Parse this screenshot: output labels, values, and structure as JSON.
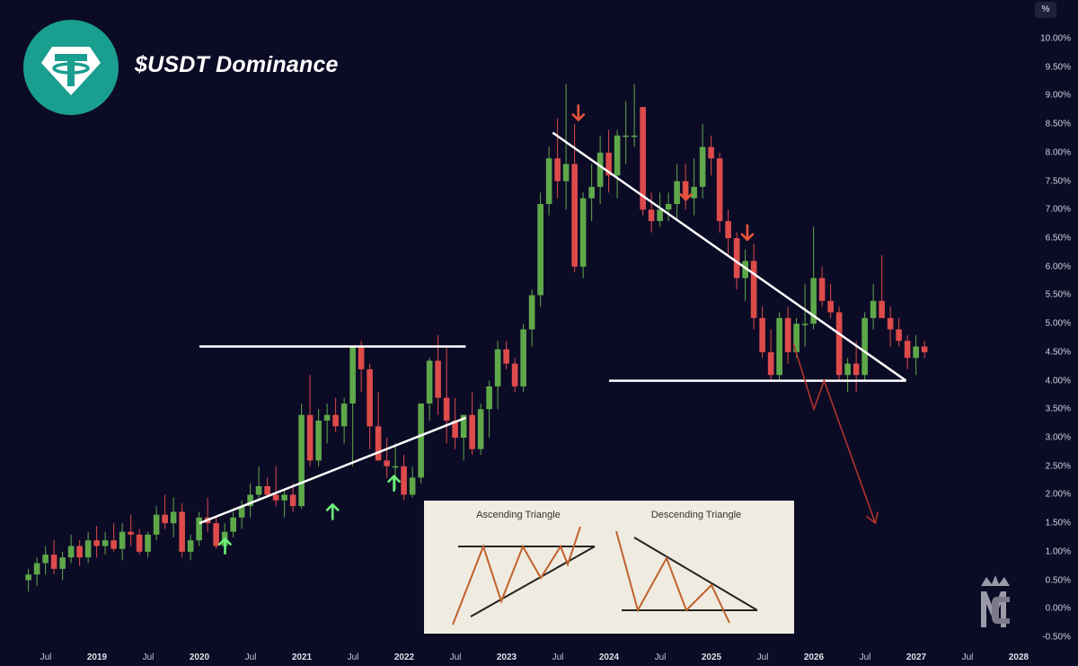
{
  "header": {
    "title": "$USDT Dominance",
    "unit": "%"
  },
  "colors": {
    "background": "#0c0b26",
    "up": "#5ea84a",
    "down": "#dd4b4b",
    "trendline": "#ffffff",
    "arrow_up": "#6ef07a",
    "arrow_down": "#e8553a",
    "projection": "#b0342c",
    "logo": "#1a9e8f"
  },
  "chart_data": {
    "type": "candlestick",
    "ylim": [
      -0.5,
      10.0
    ],
    "yticks": [
      "10.00%",
      "9.50%",
      "9.00%",
      "8.50%",
      "8.00%",
      "7.50%",
      "7.00%",
      "6.50%",
      "6.00%",
      "5.50%",
      "5.00%",
      "4.50%",
      "4.00%",
      "3.50%",
      "3.00%",
      "2.50%",
      "2.00%",
      "1.50%",
      "1.00%",
      "0.50%",
      "0.00%",
      "-0.50%"
    ],
    "xticks": [
      {
        "label": "Jul",
        "year": false,
        "t": 2018.5
      },
      {
        "label": "2019",
        "year": true,
        "t": 2019.0
      },
      {
        "label": "Jul",
        "year": false,
        "t": 2019.5
      },
      {
        "label": "2020",
        "year": true,
        "t": 2020.0
      },
      {
        "label": "Jul",
        "year": false,
        "t": 2020.5
      },
      {
        "label": "2021",
        "year": true,
        "t": 2021.0
      },
      {
        "label": "Jul",
        "year": false,
        "t": 2021.5
      },
      {
        "label": "2022",
        "year": true,
        "t": 2022.0
      },
      {
        "label": "Jul",
        "year": false,
        "t": 2022.5
      },
      {
        "label": "2023",
        "year": true,
        "t": 2023.0
      },
      {
        "label": "Jul",
        "year": false,
        "t": 2023.5
      },
      {
        "label": "2024",
        "year": true,
        "t": 2024.0
      },
      {
        "label": "Jul",
        "year": false,
        "t": 2024.5
      },
      {
        "label": "2025",
        "year": true,
        "t": 2025.0
      },
      {
        "label": "Jul",
        "year": false,
        "t": 2025.5
      },
      {
        "label": "2026",
        "year": true,
        "t": 2026.0
      },
      {
        "label": "Jul",
        "year": false,
        "t": 2026.5
      },
      {
        "label": "2027",
        "year": true,
        "t": 2027.0
      },
      {
        "label": "Jul",
        "year": false,
        "t": 2027.5
      },
      {
        "label": "2028",
        "year": true,
        "t": 2028.0
      }
    ],
    "candles_ohlc": [
      [
        0.5,
        0.7,
        0.3,
        0.6
      ],
      [
        0.6,
        0.9,
        0.4,
        0.8
      ],
      [
        0.8,
        1.1,
        0.6,
        0.95
      ],
      [
        0.95,
        1.2,
        0.6,
        0.7
      ],
      [
        0.7,
        1.0,
        0.5,
        0.9
      ],
      [
        0.9,
        1.3,
        0.8,
        1.1
      ],
      [
        1.1,
        1.2,
        0.75,
        0.9
      ],
      [
        0.9,
        1.35,
        0.8,
        1.2
      ],
      [
        1.2,
        1.45,
        0.9,
        1.1
      ],
      [
        1.1,
        1.35,
        0.95,
        1.2
      ],
      [
        1.2,
        1.5,
        1.0,
        1.05
      ],
      [
        1.05,
        1.5,
        0.85,
        1.35
      ],
      [
        1.35,
        1.65,
        1.1,
        1.3
      ],
      [
        1.3,
        1.4,
        0.95,
        1.0
      ],
      [
        1.0,
        1.35,
        0.9,
        1.3
      ],
      [
        1.3,
        1.8,
        1.2,
        1.65
      ],
      [
        1.65,
        2.0,
        1.4,
        1.5
      ],
      [
        1.5,
        1.95,
        1.25,
        1.7
      ],
      [
        1.7,
        1.85,
        0.9,
        1.0
      ],
      [
        1.0,
        1.3,
        0.85,
        1.2
      ],
      [
        1.2,
        1.7,
        1.1,
        1.6
      ],
      [
        1.6,
        1.95,
        1.35,
        1.5
      ],
      [
        1.5,
        1.6,
        1.05,
        1.1
      ],
      [
        1.1,
        1.5,
        0.95,
        1.35
      ],
      [
        1.35,
        1.7,
        1.25,
        1.6
      ],
      [
        1.6,
        1.9,
        1.4,
        1.8
      ],
      [
        1.8,
        2.2,
        1.6,
        2.0
      ],
      [
        2.0,
        2.5,
        1.9,
        2.15
      ],
      [
        2.15,
        2.3,
        1.95,
        2.0
      ],
      [
        2.0,
        2.5,
        1.8,
        1.9
      ],
      [
        1.9,
        2.1,
        1.6,
        2.0
      ],
      [
        2.0,
        2.2,
        1.7,
        1.8
      ],
      [
        1.8,
        3.6,
        1.75,
        3.4
      ],
      [
        3.4,
        4.1,
        2.5,
        2.6
      ],
      [
        2.6,
        3.5,
        2.5,
        3.3
      ],
      [
        3.3,
        3.6,
        2.9,
        3.4
      ],
      [
        3.4,
        3.7,
        3.1,
        3.2
      ],
      [
        3.2,
        3.7,
        2.9,
        3.6
      ],
      [
        3.6,
        4.4,
        2.5,
        4.6
      ],
      [
        4.6,
        4.7,
        3.8,
        4.2
      ],
      [
        4.2,
        4.3,
        2.8,
        3.2
      ],
      [
        3.2,
        3.8,
        2.6,
        2.6
      ],
      [
        2.6,
        3.0,
        2.3,
        2.5
      ],
      [
        2.5,
        2.9,
        2.1,
        2.5
      ],
      [
        2.5,
        2.7,
        1.9,
        2.0
      ],
      [
        2.0,
        2.5,
        1.95,
        2.3
      ],
      [
        2.3,
        3.6,
        2.2,
        3.6
      ],
      [
        3.6,
        4.4,
        3.3,
        4.35
      ],
      [
        4.35,
        4.8,
        3.4,
        3.7
      ],
      [
        3.7,
        4.6,
        2.9,
        3.3
      ],
      [
        3.3,
        3.7,
        2.8,
        3.0
      ],
      [
        3.0,
        3.4,
        2.6,
        3.4
      ],
      [
        3.4,
        3.8,
        2.7,
        2.8
      ],
      [
        2.8,
        3.6,
        2.7,
        3.5
      ],
      [
        3.5,
        4.0,
        3.0,
        3.9
      ],
      [
        3.9,
        4.7,
        3.5,
        4.55
      ],
      [
        4.55,
        4.7,
        4.2,
        4.3
      ],
      [
        4.3,
        4.4,
        3.8,
        3.9
      ],
      [
        3.9,
        5.0,
        3.8,
        4.9
      ],
      [
        4.9,
        5.6,
        4.6,
        5.5
      ],
      [
        5.5,
        7.3,
        5.3,
        7.1
      ],
      [
        7.1,
        8.1,
        6.9,
        7.9
      ],
      [
        7.9,
        8.6,
        7.2,
        7.5
      ],
      [
        7.5,
        9.2,
        7.0,
        7.8
      ],
      [
        7.8,
        8.5,
        5.9,
        6.0
      ],
      [
        6.0,
        7.3,
        5.8,
        7.2
      ],
      [
        7.2,
        7.8,
        6.8,
        7.4
      ],
      [
        7.4,
        8.3,
        7.1,
        8.0
      ],
      [
        8.0,
        8.4,
        7.3,
        7.6
      ],
      [
        7.6,
        8.4,
        7.2,
        8.3
      ],
      [
        8.3,
        8.9,
        7.8,
        8.3
      ],
      [
        8.3,
        9.2,
        8.1,
        8.3
      ],
      [
        8.8,
        8.8,
        6.9,
        7.0
      ],
      [
        7.0,
        7.3,
        6.6,
        6.8
      ],
      [
        6.8,
        7.3,
        6.7,
        7.0
      ],
      [
        7.0,
        7.3,
        6.8,
        7.1
      ],
      [
        7.1,
        7.8,
        6.8,
        7.5
      ],
      [
        7.5,
        7.8,
        7.0,
        7.2
      ],
      [
        7.2,
        7.9,
        6.9,
        7.4
      ],
      [
        7.4,
        8.5,
        7.2,
        8.1
      ],
      [
        8.1,
        8.3,
        7.6,
        7.9
      ],
      [
        7.9,
        8.0,
        6.6,
        6.8
      ],
      [
        6.8,
        7.0,
        6.2,
        6.5
      ],
      [
        6.5,
        6.6,
        5.6,
        5.8
      ],
      [
        5.8,
        6.3,
        5.4,
        6.1
      ],
      [
        6.1,
        6.4,
        4.9,
        5.1
      ],
      [
        5.1,
        5.3,
        4.4,
        4.5
      ],
      [
        4.5,
        4.9,
        4.0,
        4.1
      ],
      [
        4.1,
        5.2,
        4.0,
        5.1
      ],
      [
        5.1,
        5.3,
        4.3,
        4.5
      ],
      [
        4.5,
        5.1,
        4.4,
        5.0
      ],
      [
        5.0,
        5.7,
        4.6,
        5.0
      ],
      [
        5.0,
        6.7,
        4.9,
        5.8
      ],
      [
        5.8,
        6.0,
        5.3,
        5.4
      ],
      [
        5.4,
        5.7,
        5.1,
        5.2
      ],
      [
        5.2,
        5.3,
        4.0,
        4.1
      ],
      [
        4.1,
        4.4,
        3.8,
        4.3
      ],
      [
        4.3,
        4.7,
        3.8,
        4.1
      ],
      [
        4.1,
        5.2,
        4.0,
        5.1
      ],
      [
        5.1,
        5.7,
        4.9,
        5.4
      ],
      [
        5.4,
        6.2,
        5.1,
        5.1
      ],
      [
        5.1,
        5.3,
        4.6,
        4.9
      ],
      [
        4.9,
        5.1,
        4.6,
        4.7
      ],
      [
        4.7,
        4.8,
        4.2,
        4.4
      ],
      [
        4.4,
        4.8,
        4.1,
        4.6
      ],
      [
        4.6,
        4.7,
        4.4,
        4.5
      ]
    ],
    "trendlines": [
      {
        "name": "ascending-support",
        "from": [
          2020.0,
          1.5
        ],
        "to": [
          2022.6,
          3.35
        ]
      },
      {
        "name": "ascending-resistance",
        "from": [
          2020.0,
          4.6
        ],
        "to": [
          2022.6,
          4.6
        ]
      },
      {
        "name": "descending-resistance",
        "from": [
          2023.45,
          8.35
        ],
        "to": [
          2026.9,
          4.0
        ]
      },
      {
        "name": "descending-support",
        "from": [
          2024.0,
          4.0
        ],
        "to": [
          2026.9,
          4.0
        ]
      }
    ],
    "projection": [
      [
        2025.8,
        4.65
      ],
      [
        2026.0,
        3.5
      ],
      [
        2026.1,
        4.0
      ],
      [
        2026.6,
        1.5
      ]
    ],
    "support_arrows_at": [
      [
        2020.25,
        1.1
      ],
      [
        2021.3,
        1.7
      ],
      [
        2021.9,
        2.2
      ]
    ],
    "resistance_arrows_at": [
      [
        2023.7,
        8.7
      ],
      [
        2024.75,
        7.3
      ],
      [
        2025.35,
        6.6
      ]
    ]
  },
  "inset": {
    "ascending_label": "Ascending Triangle",
    "descending_label": "Descending Triangle"
  },
  "watermark": {
    "text": "MC"
  }
}
